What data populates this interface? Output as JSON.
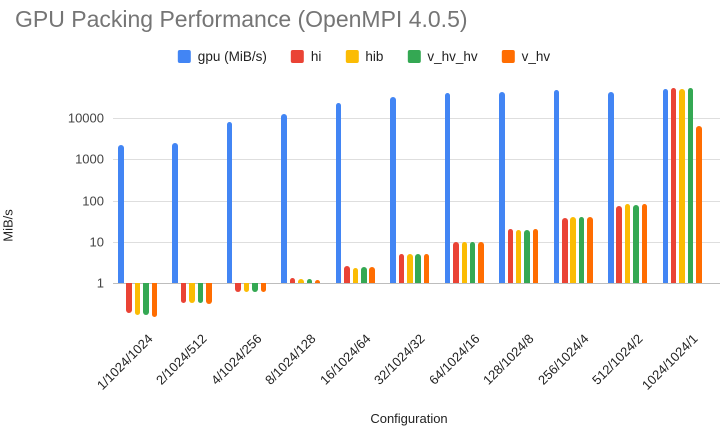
{
  "title": "GPU Packing Performance (OpenMPI 4.0.5)",
  "chart_data": {
    "type": "bar",
    "title": "GPU Packing Performance (OpenMPI 4.0.5)",
    "xlabel": "Configuration",
    "ylabel": "MiB/s",
    "y_scale": "log",
    "ylim": [
      0.13,
      60000
    ],
    "y_ticks": [
      1,
      10,
      100,
      1000,
      10000
    ],
    "grid": true,
    "legend_position": "top",
    "bar_baseline": 1,
    "categories": [
      "1/1024/1024",
      "2/1024/512",
      "4/1024/256",
      "8/1024/128",
      "16/1024/64",
      "32/1024/32",
      "64/1024/16",
      "128/1024/8",
      "256/1024/4",
      "512/1024/2",
      "1024/1024/1"
    ],
    "series": [
      {
        "name": "gpu (MiB/s)",
        "color": "#4285F4",
        "values": [
          2200,
          2500,
          8300,
          12500,
          23000,
          32000,
          41000,
          44000,
          48000,
          43000,
          50000
        ]
      },
      {
        "name": "hi",
        "color": "#EA4335",
        "values": [
          0.19,
          0.33,
          0.62,
          1.3,
          2.6,
          5.2,
          10.0,
          20.0,
          38,
          75,
          55000
        ]
      },
      {
        "name": "hib",
        "color": "#FBBC04",
        "values": [
          0.17,
          0.32,
          0.6,
          1.25,
          2.3,
          5.0,
          9.8,
          19.5,
          40,
          85,
          52000
        ]
      },
      {
        "name": "v_hv_hv",
        "color": "#34A853",
        "values": [
          0.17,
          0.33,
          0.61,
          1.25,
          2.4,
          5.0,
          10.0,
          19.5,
          39,
          78,
          55000
        ]
      },
      {
        "name": "v_hv",
        "color": "#FF6D01",
        "values": [
          0.15,
          0.31,
          0.6,
          1.2,
          2.5,
          5.1,
          10.0,
          20.0,
          40,
          82,
          6500
        ]
      }
    ]
  },
  "colors": {
    "title_text": "#757575",
    "axis_text": "#222222",
    "tick_text": "#444444",
    "gridline": "#dedede",
    "baseline": "#bdbdbd"
  }
}
